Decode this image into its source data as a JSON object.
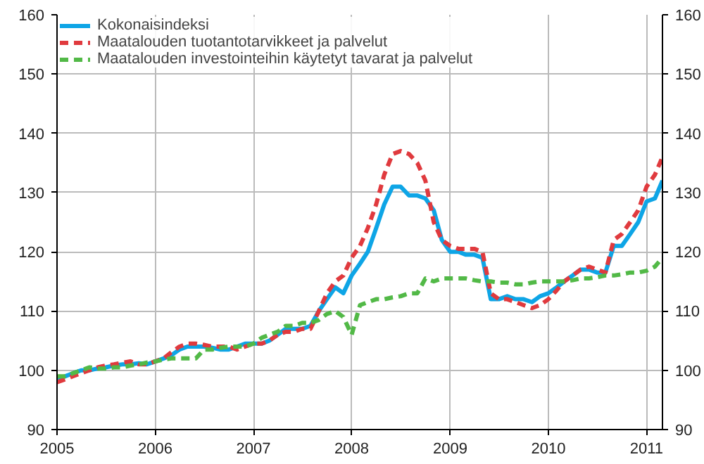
{
  "chart_data": {
    "type": "line",
    "legend": "top left",
    "grid": true,
    "x": [
      "2005-01",
      "2005-02",
      "2005-03",
      "2005-04",
      "2005-05",
      "2005-06",
      "2005-07",
      "2005-08",
      "2005-09",
      "2005-10",
      "2005-11",
      "2005-12",
      "2006-01",
      "2006-02",
      "2006-03",
      "2006-04",
      "2006-05",
      "2006-06",
      "2006-07",
      "2006-08",
      "2006-09",
      "2006-10",
      "2006-11",
      "2006-12",
      "2007-01",
      "2007-02",
      "2007-03",
      "2007-04",
      "2007-05",
      "2007-06",
      "2007-07",
      "2007-08",
      "2007-09",
      "2007-10",
      "2007-11",
      "2007-12",
      "2008-01",
      "2008-02",
      "2008-03",
      "2008-04",
      "2008-05",
      "2008-06",
      "2008-07",
      "2008-08",
      "2008-09",
      "2008-10",
      "2008-11",
      "2008-12",
      "2009-01",
      "2009-02",
      "2009-03",
      "2009-04",
      "2009-05",
      "2009-06",
      "2009-07",
      "2009-08",
      "2009-09",
      "2009-10",
      "2009-11",
      "2009-12",
      "2010-01",
      "2010-02",
      "2010-03",
      "2010-04",
      "2010-05",
      "2010-06",
      "2010-07",
      "2010-08",
      "2010-09",
      "2010-10",
      "2010-11",
      "2010-12",
      "2011-01",
      "2011-02",
      "2011-03"
    ],
    "xlim": [
      "2005-01",
      "2011-03"
    ],
    "xticks": [
      "2005",
      "2006",
      "2007",
      "2008",
      "2009",
      "2010",
      "2011"
    ],
    "ylim": [
      90,
      160
    ],
    "yticks": [
      90,
      100,
      110,
      120,
      130,
      140,
      150,
      160
    ],
    "y2lim": [
      90,
      160
    ],
    "y2ticks": [
      90,
      100,
      110,
      120,
      130,
      140,
      150,
      160
    ],
    "series": [
      {
        "name": "Kokonaisindeksi",
        "color": "#0ea5e6",
        "line_style": "solid",
        "values": [
          98.5,
          99,
          99.5,
          100,
          100,
          100.3,
          100.5,
          100.8,
          101,
          101,
          101.2,
          101,
          101.5,
          102,
          102.5,
          103.5,
          104,
          104,
          104,
          103.8,
          103.5,
          103.5,
          104,
          104.5,
          104.5,
          104.5,
          105,
          106,
          107,
          107,
          107,
          107.5,
          110,
          112,
          114,
          113,
          116,
          118,
          120,
          124,
          128,
          131,
          131,
          129.5,
          129.5,
          129,
          127,
          122,
          120,
          120,
          119.5,
          119.5,
          119,
          112,
          112,
          112.5,
          112,
          112,
          111.5,
          112.5,
          113,
          114,
          115,
          116,
          117,
          117,
          116.5,
          116.5,
          121,
          121,
          123,
          125,
          128.5,
          129,
          132
        ]
      },
      {
        "name": "Maatalouden tuotantotarvikkeet ja palvelut",
        "color": "#e03a3e",
        "line_style": "dashed",
        "values": [
          98,
          98.5,
          99,
          99.5,
          100,
          100.5,
          100.8,
          101,
          101.3,
          101.5,
          101,
          101,
          101.5,
          102,
          103,
          104,
          104.5,
          104.5,
          104.3,
          104,
          104,
          104,
          103.5,
          104,
          104.5,
          104.5,
          105,
          106,
          106.5,
          106.5,
          107,
          107,
          110,
          113,
          115,
          116,
          119,
          121,
          124,
          128,
          133,
          136.5,
          137,
          136.5,
          135,
          132,
          125,
          122,
          121,
          120.5,
          120.5,
          120.5,
          120,
          113,
          112,
          112,
          111.5,
          111,
          110.5,
          111,
          112,
          113.5,
          115,
          116,
          117,
          117.5,
          117,
          116.5,
          122,
          123,
          125,
          127,
          131,
          133,
          136
        ]
      },
      {
        "name": "Maatalouden investointeihin käytetyt tavarat ja palvelut",
        "color": "#52b947",
        "line_style": "dashed",
        "values": [
          99,
          99,
          99.5,
          100,
          100.5,
          100.3,
          100.3,
          100.5,
          100.5,
          100.8,
          101,
          101.3,
          101.5,
          101.8,
          102,
          102,
          102,
          102,
          103.5,
          103.5,
          103.8,
          104,
          104,
          104,
          104.5,
          105.5,
          106,
          106.5,
          107.5,
          107.5,
          108,
          108,
          108.5,
          109.5,
          110,
          109,
          106,
          111,
          111.5,
          112,
          112,
          112.3,
          112.5,
          113,
          113,
          115.5,
          115,
          115.5,
          115.5,
          115.5,
          115.5,
          115.2,
          115,
          115,
          114.8,
          114.8,
          114.5,
          114.5,
          114.8,
          115,
          115,
          115,
          115,
          115.2,
          115.5,
          115.5,
          115.7,
          116,
          116,
          116.2,
          116.5,
          116.5,
          116.8,
          117.5,
          119
        ]
      }
    ]
  }
}
